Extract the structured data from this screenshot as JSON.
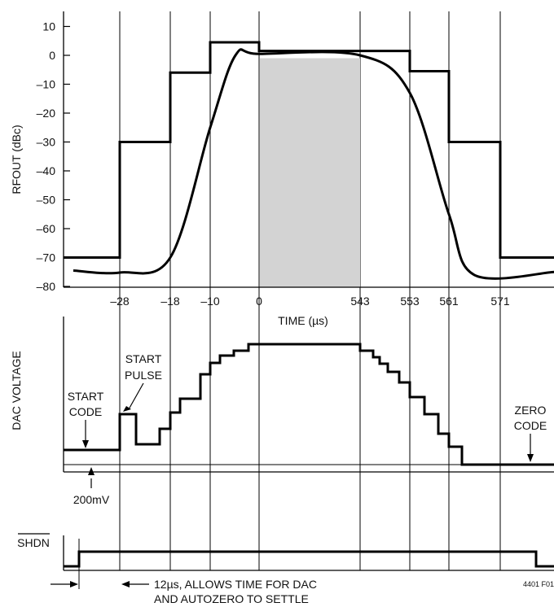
{
  "chart_data": [
    {
      "type": "line",
      "ylabel": "RFOUT (dBc)",
      "xlabel": "TIME (µs)",
      "x_tick_labels": [
        "–28",
        "–18",
        "–10",
        "0",
        "543",
        "553",
        "561",
        "571"
      ],
      "y_ticks": [
        10,
        0,
        -10,
        -20,
        -30,
        -40,
        -50,
        -60,
        -70,
        -80
      ],
      "y_tick_labels": [
        "10",
        "0",
        "–10",
        "–20",
        "–30",
        "–40",
        "–50",
        "–60",
        "–70",
        "–80"
      ],
      "ylim": [
        -80,
        15
      ],
      "grid_vertical": true,
      "shaded_region": {
        "x_start": 0,
        "x_end": 543,
        "y_top": -1,
        "color": "#d3d3d3"
      },
      "series": [
        {
          "style": "step",
          "points": [
            {
              "x": "before",
              "y": -70
            },
            {
              "x": -28,
              "y": -30
            },
            {
              "x": -18,
              "y": -6
            },
            {
              "x": -10,
              "y": 4.5
            },
            {
              "x": 0,
              "y": 1.5
            },
            {
              "x": 543,
              "y": 1.5
            },
            {
              "x": 553,
              "y": -5.5
            },
            {
              "x": 561,
              "y": -30
            },
            {
              "x": 571,
              "y": -70
            }
          ]
        },
        {
          "style": "smooth",
          "points": [
            {
              "x": "start",
              "y": -74.5
            },
            {
              "x": -28,
              "y": -75.2
            },
            {
              "x": -18,
              "y": -70
            },
            {
              "x": -10,
              "y": -25
            },
            {
              "x": -5,
              "y": 0
            },
            {
              "x": 0,
              "y": 0.5
            },
            {
              "x": 543,
              "y": 0
            },
            {
              "x": 553,
              "y": -13
            },
            {
              "x": 561,
              "y": -55
            },
            {
              "x": 566,
              "y": -76
            },
            {
              "x": "end",
              "y": -75
            }
          ]
        }
      ]
    },
    {
      "type": "line",
      "ylabel": "DAC VOLTAGE",
      "annotations": {
        "start_code": [
          "START",
          "CODE"
        ],
        "start_pulse": [
          "START",
          "PULSE"
        ],
        "zero_code": [
          "ZERO",
          "CODE"
        ],
        "level": "200mV"
      },
      "series": [
        {
          "name": "DAC staircase",
          "style": "step",
          "points_relative": [
            {
              "x": "start",
              "y": 0.2
            },
            {
              "x": -28,
              "y": 0.9
            },
            {
              "x": "pulse-end",
              "y": 0.45
            },
            {
              "x": "step-1",
              "y": 0.6
            },
            {
              "x": -18,
              "y": 1.0
            },
            {
              "x": "step-2",
              "y": 1.3
            },
            {
              "x": -10,
              "y": 1.95
            },
            {
              "x": 0,
              "y": 2.85
            },
            {
              "x": 543,
              "y": 2.4
            },
            {
              "x": 553,
              "y": 1.3
            },
            {
              "x": 561,
              "y": 0
            }
          ]
        }
      ]
    },
    {
      "type": "line",
      "ylabel": "SHDN",
      "annotation_lines": [
        "12µs, ALLOWS TIME FOR DAC",
        "AND AUTOZERO TO SETTLE"
      ],
      "figure_code": "4401 F01"
    }
  ]
}
